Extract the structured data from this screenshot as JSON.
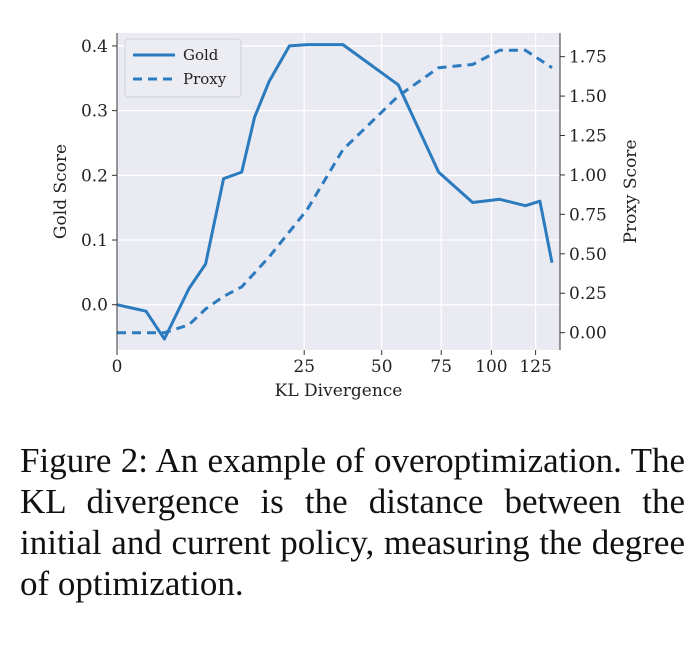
{
  "chart_data": {
    "type": "line",
    "xlabel": "KL Divergence",
    "ylabel_left": "Gold Score",
    "ylabel_right": "Proxy Score",
    "x_scale": "sqrt",
    "xlim": [
      0,
      140
    ],
    "ylim_left": [
      -0.07,
      0.42
    ],
    "ylim_right": [
      -0.11,
      1.9
    ],
    "x_ticks": [
      0,
      25,
      50,
      75,
      100,
      125
    ],
    "x_tick_labels": [
      "0",
      "25",
      "50",
      "75",
      "100",
      "125"
    ],
    "y_left_ticks": [
      0.0,
      0.1,
      0.2,
      0.3,
      0.4
    ],
    "y_left_tick_labels": [
      "0.0",
      "0.1",
      "0.2",
      "0.3",
      "0.4"
    ],
    "y_right_ticks": [
      0.0,
      0.25,
      0.5,
      0.75,
      1.0,
      1.25,
      1.5,
      1.75
    ],
    "y_right_tick_labels": [
      "0.00",
      "0.25",
      "0.50",
      "0.75",
      "1.00",
      "1.25",
      "1.50",
      "1.75"
    ],
    "grid": true,
    "legend_position": "top-left",
    "series": [
      {
        "name": "Gold",
        "axis": "left",
        "style": "solid",
        "color": "#2c7bbf",
        "x": [
          0,
          0.6,
          1.6,
          3.7,
          5.6,
          8.1,
          11.1,
          13.5,
          16.5,
          21.2,
          25.8,
          36.4,
          56.4,
          73.8,
          90.2,
          104.4,
          119.0,
          127.6,
          135.0
        ],
        "y": [
          0.0,
          -0.01,
          -0.053,
          0.025,
          0.063,
          0.195,
          0.205,
          0.29,
          0.345,
          0.4,
          0.402,
          0.402,
          0.34,
          0.205,
          0.158,
          0.163,
          0.153,
          0.16,
          0.065
        ]
      },
      {
        "name": "Proxy",
        "axis": "right",
        "style": "dashed",
        "color": "#2c7bbf",
        "x": [
          0,
          0.6,
          1.6,
          3.7,
          5.6,
          8.1,
          11.1,
          16.5,
          25.8,
          36.4,
          56.4,
          73.8,
          90.2,
          104.4,
          119.0,
          135.0
        ],
        "y": [
          0.0,
          0.0,
          0.0,
          0.05,
          0.15,
          0.23,
          0.29,
          0.48,
          0.78,
          1.16,
          1.5,
          1.68,
          1.7,
          1.79,
          1.79,
          1.68
        ]
      }
    ]
  },
  "caption": "Figure 2: An example of overoptimization. The KL divergence is the distance between the initial and current policy, measuring the degree of optimization."
}
